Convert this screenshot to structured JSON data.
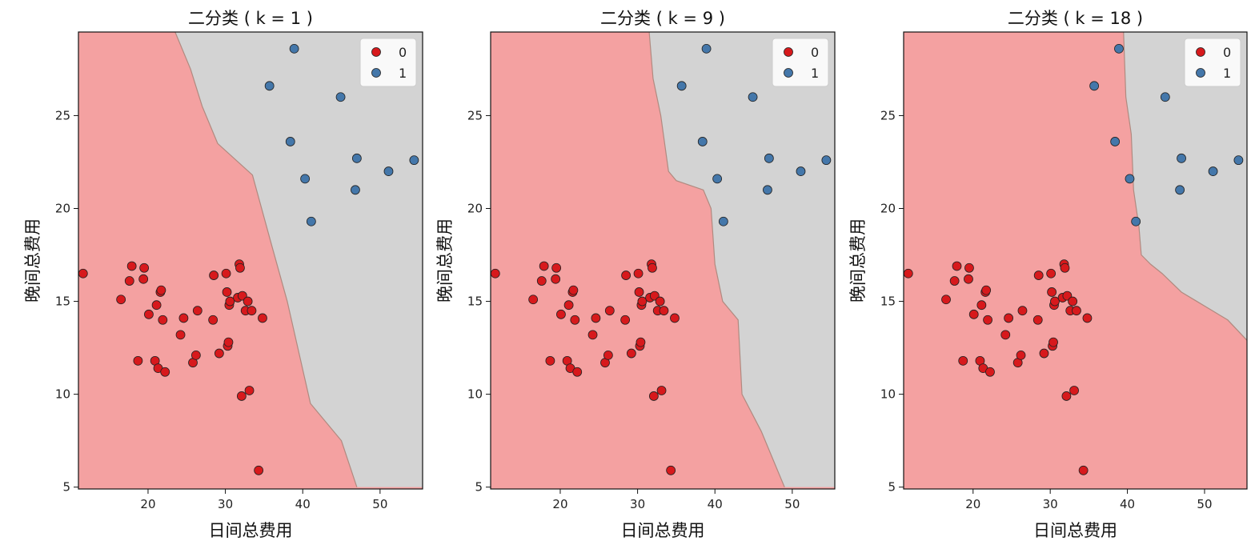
{
  "chart_data": [
    {
      "type": "scatter",
      "title": "二分类 ( k = 1 )",
      "xlabel": "日间总费用",
      "ylabel": "晚间总费用",
      "xlim": [
        11,
        55.5
      ],
      "ylim": [
        4.9,
        29.5
      ],
      "xticks": [
        20,
        30,
        40,
        50
      ],
      "yticks": [
        5,
        10,
        15,
        20,
        25
      ],
      "legend_position": "top-right",
      "region_colors": {
        "0": "#f4a1a1",
        "1": "#d3d3d3"
      },
      "boundary": [
        [
          23.5,
          29.5
        ],
        [
          25.5,
          27.5
        ],
        [
          27.0,
          25.5
        ],
        [
          29.0,
          23.5
        ],
        [
          33.5,
          21.8
        ],
        [
          36.0,
          18.0
        ],
        [
          38.0,
          15.0
        ],
        [
          41.0,
          9.5
        ],
        [
          45.0,
          7.5
        ],
        [
          47.0,
          5.0
        ]
      ],
      "series": [
        {
          "name": "0",
          "color": "#d7191c",
          "points": [
            [
              11.6,
              16.5
            ],
            [
              16.5,
              15.1
            ],
            [
              17.6,
              16.1
            ],
            [
              17.9,
              16.9
            ],
            [
              18.7,
              11.8
            ],
            [
              19.4,
              16.2
            ],
            [
              19.5,
              16.8
            ],
            [
              20.1,
              14.3
            ],
            [
              20.9,
              11.8
            ],
            [
              21.1,
              14.8
            ],
            [
              21.3,
              11.4
            ],
            [
              21.6,
              15.5
            ],
            [
              21.7,
              15.6
            ],
            [
              21.9,
              14.0
            ],
            [
              22.2,
              11.2
            ],
            [
              24.2,
              13.2
            ],
            [
              24.6,
              14.1
            ],
            [
              25.8,
              11.7
            ],
            [
              26.2,
              12.1
            ],
            [
              26.4,
              14.5
            ],
            [
              28.4,
              14.0
            ],
            [
              28.5,
              16.4
            ],
            [
              29.2,
              12.2
            ],
            [
              30.1,
              16.5
            ],
            [
              30.2,
              15.5
            ],
            [
              30.3,
              12.6
            ],
            [
              30.4,
              12.8
            ],
            [
              30.5,
              14.8
            ],
            [
              30.6,
              15.0
            ],
            [
              31.6,
              15.2
            ],
            [
              31.8,
              17.0
            ],
            [
              31.9,
              16.8
            ],
            [
              32.1,
              9.9
            ],
            [
              32.2,
              15.3
            ],
            [
              32.6,
              14.5
            ],
            [
              32.9,
              15.0
            ],
            [
              33.1,
              10.2
            ],
            [
              33.4,
              14.5
            ],
            [
              34.3,
              5.9
            ],
            [
              34.8,
              14.1
            ]
          ]
        },
        {
          "name": "1",
          "color": "#4477aa",
          "points": [
            [
              35.7,
              26.6
            ],
            [
              38.4,
              23.6
            ],
            [
              38.9,
              28.6
            ],
            [
              40.3,
              21.6
            ],
            [
              41.1,
              19.3
            ],
            [
              44.9,
              26.0
            ],
            [
              46.8,
              21.0
            ],
            [
              47.0,
              22.7
            ],
            [
              51.1,
              22.0
            ],
            [
              54.4,
              22.6
            ]
          ]
        }
      ]
    },
    {
      "type": "scatter",
      "title": "二分类 ( k = 9 )",
      "xlabel": "日间总费用",
      "ylabel": "晚间总费用",
      "xlim": [
        11,
        55.5
      ],
      "ylim": [
        4.9,
        29.5
      ],
      "xticks": [
        20,
        30,
        40,
        50
      ],
      "yticks": [
        5,
        10,
        15,
        20,
        25
      ],
      "legend_position": "top-right",
      "region_colors": {
        "0": "#f4a1a1",
        "1": "#d3d3d3"
      },
      "boundary": [
        [
          31.5,
          29.5
        ],
        [
          32.0,
          27.0
        ],
        [
          33.0,
          25.0
        ],
        [
          34.0,
          22.0
        ],
        [
          35.0,
          21.5
        ],
        [
          38.5,
          21.0
        ],
        [
          39.5,
          20.0
        ],
        [
          40.0,
          17.0
        ],
        [
          41.0,
          15.0
        ],
        [
          43.0,
          14.0
        ],
        [
          43.5,
          10.0
        ],
        [
          46.0,
          8.0
        ],
        [
          48.0,
          6.0
        ],
        [
          49.0,
          5.0
        ]
      ],
      "series": [
        {
          "name": "0",
          "color": "#d7191c",
          "points": [
            [
              11.6,
              16.5
            ],
            [
              16.5,
              15.1
            ],
            [
              17.6,
              16.1
            ],
            [
              17.9,
              16.9
            ],
            [
              18.7,
              11.8
            ],
            [
              19.4,
              16.2
            ],
            [
              19.5,
              16.8
            ],
            [
              20.1,
              14.3
            ],
            [
              20.9,
              11.8
            ],
            [
              21.1,
              14.8
            ],
            [
              21.3,
              11.4
            ],
            [
              21.6,
              15.5
            ],
            [
              21.7,
              15.6
            ],
            [
              21.9,
              14.0
            ],
            [
              22.2,
              11.2
            ],
            [
              24.2,
              13.2
            ],
            [
              24.6,
              14.1
            ],
            [
              25.8,
              11.7
            ],
            [
              26.2,
              12.1
            ],
            [
              26.4,
              14.5
            ],
            [
              28.4,
              14.0
            ],
            [
              28.5,
              16.4
            ],
            [
              29.2,
              12.2
            ],
            [
              30.1,
              16.5
            ],
            [
              30.2,
              15.5
            ],
            [
              30.3,
              12.6
            ],
            [
              30.4,
              12.8
            ],
            [
              30.5,
              14.8
            ],
            [
              30.6,
              15.0
            ],
            [
              31.6,
              15.2
            ],
            [
              31.8,
              17.0
            ],
            [
              31.9,
              16.8
            ],
            [
              32.1,
              9.9
            ],
            [
              32.2,
              15.3
            ],
            [
              32.6,
              14.5
            ],
            [
              32.9,
              15.0
            ],
            [
              33.1,
              10.2
            ],
            [
              33.4,
              14.5
            ],
            [
              34.3,
              5.9
            ],
            [
              34.8,
              14.1
            ]
          ]
        },
        {
          "name": "1",
          "color": "#4477aa",
          "points": [
            [
              35.7,
              26.6
            ],
            [
              38.4,
              23.6
            ],
            [
              38.9,
              28.6
            ],
            [
              40.3,
              21.6
            ],
            [
              41.1,
              19.3
            ],
            [
              44.9,
              26.0
            ],
            [
              46.8,
              21.0
            ],
            [
              47.0,
              22.7
            ],
            [
              51.1,
              22.0
            ],
            [
              54.4,
              22.6
            ]
          ]
        }
      ]
    },
    {
      "type": "scatter",
      "title": "二分类 ( k = 18 )",
      "xlabel": "日间总费用",
      "ylabel": "晚间总费用",
      "xlim": [
        11,
        55.5
      ],
      "ylim": [
        4.9,
        29.5
      ],
      "xticks": [
        20,
        30,
        40,
        50
      ],
      "yticks": [
        5,
        10,
        15,
        20,
        25
      ],
      "legend_position": "top-right",
      "region_colors": {
        "0": "#f4a1a1",
        "1": "#d3d3d3"
      },
      "boundary": [
        [
          39.5,
          29.5
        ],
        [
          39.8,
          26.0
        ],
        [
          40.5,
          24.0
        ],
        [
          40.8,
          21.0
        ],
        [
          41.5,
          19.0
        ],
        [
          41.8,
          17.5
        ],
        [
          43.0,
          17.0
        ],
        [
          44.5,
          16.5
        ],
        [
          47.0,
          15.5
        ],
        [
          49.0,
          15.0
        ],
        [
          51.0,
          14.5
        ],
        [
          53.0,
          14.0
        ],
        [
          55.5,
          12.9
        ]
      ],
      "series": [
        {
          "name": "0",
          "color": "#d7191c",
          "points": [
            [
              11.6,
              16.5
            ],
            [
              16.5,
              15.1
            ],
            [
              17.6,
              16.1
            ],
            [
              17.9,
              16.9
            ],
            [
              18.7,
              11.8
            ],
            [
              19.4,
              16.2
            ],
            [
              19.5,
              16.8
            ],
            [
              20.1,
              14.3
            ],
            [
              20.9,
              11.8
            ],
            [
              21.1,
              14.8
            ],
            [
              21.3,
              11.4
            ],
            [
              21.6,
              15.5
            ],
            [
              21.7,
              15.6
            ],
            [
              21.9,
              14.0
            ],
            [
              22.2,
              11.2
            ],
            [
              24.2,
              13.2
            ],
            [
              24.6,
              14.1
            ],
            [
              25.8,
              11.7
            ],
            [
              26.2,
              12.1
            ],
            [
              26.4,
              14.5
            ],
            [
              28.4,
              14.0
            ],
            [
              28.5,
              16.4
            ],
            [
              29.2,
              12.2
            ],
            [
              30.1,
              16.5
            ],
            [
              30.2,
              15.5
            ],
            [
              30.3,
              12.6
            ],
            [
              30.4,
              12.8
            ],
            [
              30.5,
              14.8
            ],
            [
              30.6,
              15.0
            ],
            [
              31.6,
              15.2
            ],
            [
              31.8,
              17.0
            ],
            [
              31.9,
              16.8
            ],
            [
              32.1,
              9.9
            ],
            [
              32.2,
              15.3
            ],
            [
              32.6,
              14.5
            ],
            [
              32.9,
              15.0
            ],
            [
              33.1,
              10.2
            ],
            [
              33.4,
              14.5
            ],
            [
              34.3,
              5.9
            ],
            [
              34.8,
              14.1
            ]
          ]
        },
        {
          "name": "1",
          "color": "#4477aa",
          "points": [
            [
              35.7,
              26.6
            ],
            [
              38.4,
              23.6
            ],
            [
              38.9,
              28.6
            ],
            [
              40.3,
              21.6
            ],
            [
              41.1,
              19.3
            ],
            [
              44.9,
              26.0
            ],
            [
              46.8,
              21.0
            ],
            [
              47.0,
              22.7
            ],
            [
              51.1,
              22.0
            ],
            [
              54.4,
              22.6
            ]
          ]
        }
      ]
    }
  ]
}
